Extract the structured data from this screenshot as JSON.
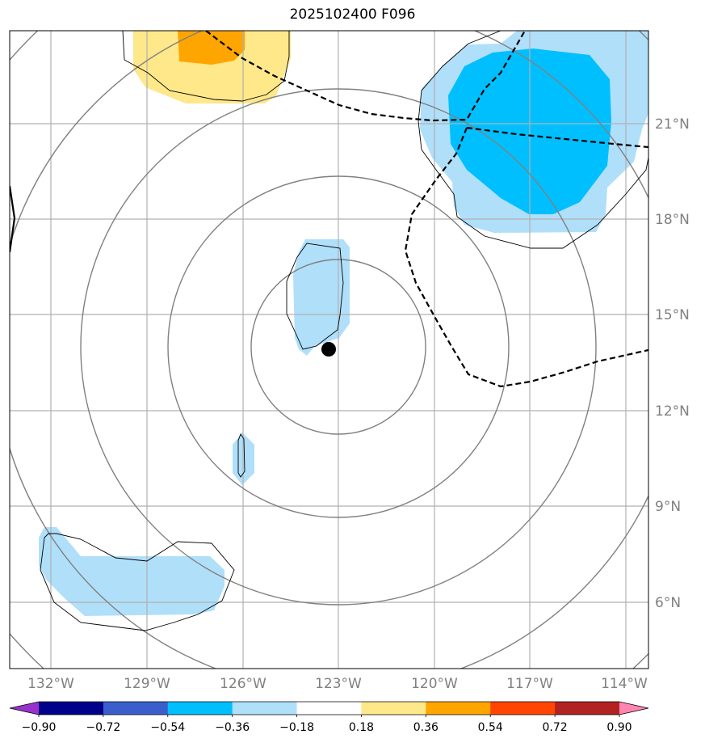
{
  "title": "2025102400 F096",
  "map": {
    "lon_range": [
      -133,
      -113
    ],
    "lat_range": [
      3.5,
      23.5
    ],
    "lon_ticks": [
      {
        "value": -132,
        "label": "132°W"
      },
      {
        "value": -129,
        "label": "129°W"
      },
      {
        "value": -126,
        "label": "126°W"
      },
      {
        "value": -123,
        "label": "123°W"
      },
      {
        "value": -120,
        "label": "120°W"
      },
      {
        "value": -117,
        "label": "117°W"
      },
      {
        "value": -114,
        "label": "114°W"
      }
    ],
    "lat_ticks": [
      {
        "value": 21,
        "label": "21°N"
      },
      {
        "value": 18,
        "label": "18°N"
      },
      {
        "value": 15,
        "label": "15°N"
      },
      {
        "value": 12,
        "label": "12°N"
      },
      {
        "value": 9,
        "label": "9°N"
      },
      {
        "value": 6,
        "label": "6°N"
      }
    ],
    "grid": true,
    "center_marker": {
      "lon": -123.3,
      "lat": 13.9
    },
    "range_rings_deg": [
      3,
      6,
      9,
      12,
      15
    ],
    "fill_colors": {
      "light_blue": "#b0dffa",
      "deep_sky_blue": "#00bfff",
      "light_yellow": "#ffe88a",
      "orange": "#ffa500"
    }
  },
  "colorbar": {
    "levels": [
      "−0.90",
      "−0.72",
      "−0.54",
      "−0.36",
      "−0.18",
      "0.18",
      "0.36",
      "0.54",
      "0.72",
      "0.90"
    ],
    "colors": [
      "#9932cc",
      "#00008b",
      "#3a5fcd",
      "#00bfff",
      "#b0dffa",
      "#ffffff",
      "#ffe88a",
      "#ffa500",
      "#ff4500",
      "#b22222",
      "#ff85b0"
    ]
  }
}
